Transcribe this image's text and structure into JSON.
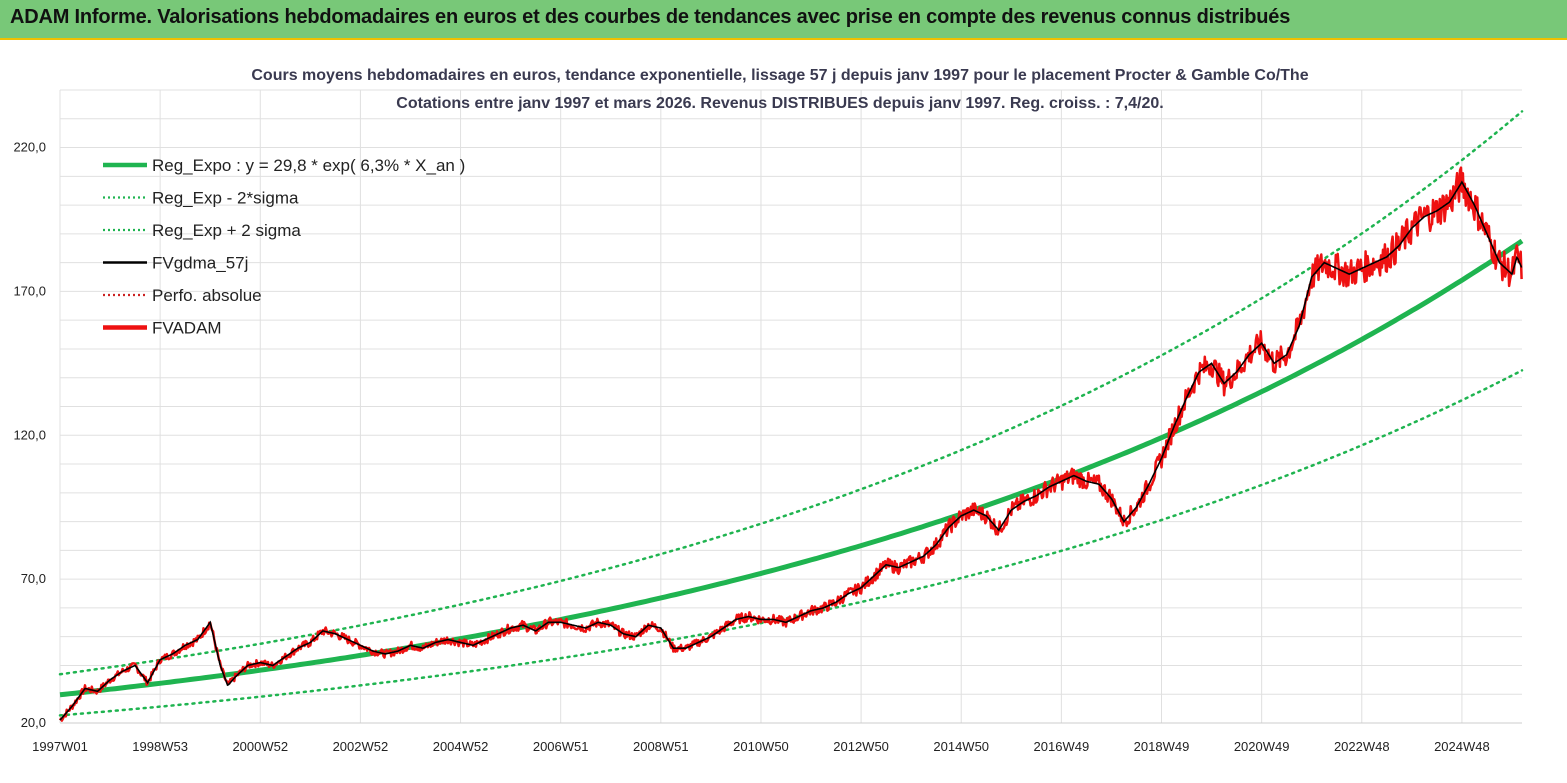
{
  "banner": {
    "title": "ADAM Informe. Valorisations hebdomadaires en euros et des courbes de tendances avec prise en compte des revenus connus distribués",
    "bg_color": "#78c878"
  },
  "chart_data": {
    "type": "line",
    "title": "Cours moyens hebdomadaires en euros, tendance exponentielle, lissage 57 j depuis janv 1997  pour le placement Procter & Gamble Co/The",
    "subtitle": "Cotations entre janv 1997 et mars 2026. Revenus DISTRIBUES depuis janv 1997. Reg. croiss. : 7,4/20.",
    "xlabel": "",
    "ylabel": "",
    "x_range": [
      1997.0,
      2026.2
    ],
    "ylim": [
      20,
      240
    ],
    "y_ticks": [
      20,
      70,
      120,
      170,
      220
    ],
    "y_tick_labels": [
      "20,0",
      "70,0",
      "120,0",
      "170,0",
      "220,0"
    ],
    "x_ticks": [
      {
        "label": "1997W01",
        "x": 1997.0
      },
      {
        "label": "1998W53",
        "x": 1999.0
      },
      {
        "label": "2000W52",
        "x": 2001.0
      },
      {
        "label": "2002W52",
        "x": 2003.0
      },
      {
        "label": "2004W52",
        "x": 2005.0
      },
      {
        "label": "2006W51",
        "x": 2007.0
      },
      {
        "label": "2008W51",
        "x": 2009.0
      },
      {
        "label": "2010W50",
        "x": 2011.0
      },
      {
        "label": "2012W50",
        "x": 2013.0
      },
      {
        "label": "2014W50",
        "x": 2015.0
      },
      {
        "label": "2016W49",
        "x": 2017.0
      },
      {
        "label": "2018W49",
        "x": 2019.0
      },
      {
        "label": "2020W49",
        "x": 2021.0
      },
      {
        "label": "2022W48",
        "x": 2023.0
      },
      {
        "label": "2024W48",
        "x": 2025.0
      }
    ],
    "grid": true,
    "legend_position": "top-left",
    "regression": {
      "a": 29.8,
      "growth_rate": 0.063,
      "x0": 1997.0,
      "sigma_factor": 0.24,
      "x_end": 2026.2
    },
    "series": [
      {
        "name": "Reg_Expo : y = 29,8 * exp( 6,3% *  X_an )",
        "color": "#1fb450",
        "style": "solid-thick",
        "kind": "regression"
      },
      {
        "name": "Reg_Exp - 2*sigma",
        "color": "#1fb450",
        "style": "dotted",
        "kind": "reg_minus"
      },
      {
        "name": "Reg_Exp + 2 sigma",
        "color": "#1fb450",
        "style": "dotted",
        "kind": "reg_plus"
      },
      {
        "name": "FVgdma_57j",
        "color": "#000000",
        "style": "solid",
        "kind": "smooth"
      },
      {
        "name": "Perfo. absolue",
        "color": "#cc2222",
        "style": "dotted",
        "kind": "none"
      },
      {
        "name": "FVADAM",
        "color": "#ee1111",
        "style": "solid-thick",
        "kind": "price"
      }
    ],
    "price_points": [
      [
        1997.0,
        21
      ],
      [
        1997.25,
        26
      ],
      [
        1997.5,
        32
      ],
      [
        1997.75,
        31
      ],
      [
        1998.0,
        35
      ],
      [
        1998.25,
        38
      ],
      [
        1998.5,
        40
      ],
      [
        1998.75,
        34
      ],
      [
        1999.0,
        42
      ],
      [
        1999.25,
        44
      ],
      [
        1999.5,
        47
      ],
      [
        1999.75,
        49
      ],
      [
        2000.0,
        55
      ],
      [
        2000.2,
        40
      ],
      [
        2000.35,
        33
      ],
      [
        2000.5,
        36
      ],
      [
        2000.75,
        40
      ],
      [
        2001.0,
        41
      ],
      [
        2001.25,
        40
      ],
      [
        2001.5,
        43
      ],
      [
        2001.75,
        46
      ],
      [
        2002.0,
        48
      ],
      [
        2002.25,
        52
      ],
      [
        2002.5,
        51
      ],
      [
        2002.75,
        49
      ],
      [
        2003.0,
        47
      ],
      [
        2003.25,
        45
      ],
      [
        2003.5,
        44
      ],
      [
        2003.75,
        45
      ],
      [
        2004.0,
        47
      ],
      [
        2004.25,
        46
      ],
      [
        2004.5,
        48
      ],
      [
        2004.75,
        49
      ],
      [
        2005.0,
        48
      ],
      [
        2005.25,
        47
      ],
      [
        2005.5,
        49
      ],
      [
        2005.75,
        51
      ],
      [
        2006.0,
        53
      ],
      [
        2006.25,
        54
      ],
      [
        2006.5,
        52
      ],
      [
        2006.75,
        55
      ],
      [
        2007.0,
        55
      ],
      [
        2007.25,
        54
      ],
      [
        2007.5,
        53
      ],
      [
        2007.75,
        55
      ],
      [
        2008.0,
        54
      ],
      [
        2008.25,
        51
      ],
      [
        2008.5,
        50
      ],
      [
        2008.75,
        54
      ],
      [
        2009.0,
        53
      ],
      [
        2009.25,
        46
      ],
      [
        2009.5,
        46
      ],
      [
        2009.75,
        48
      ],
      [
        2010.0,
        50
      ],
      [
        2010.25,
        53
      ],
      [
        2010.5,
        56
      ],
      [
        2010.75,
        57
      ],
      [
        2011.0,
        56
      ],
      [
        2011.25,
        56
      ],
      [
        2011.5,
        55
      ],
      [
        2011.75,
        57
      ],
      [
        2012.0,
        59
      ],
      [
        2012.25,
        60
      ],
      [
        2012.5,
        62
      ],
      [
        2012.75,
        65
      ],
      [
        2013.0,
        67
      ],
      [
        2013.25,
        71
      ],
      [
        2013.5,
        75
      ],
      [
        2013.75,
        74
      ],
      [
        2014.0,
        76
      ],
      [
        2014.25,
        78
      ],
      [
        2014.5,
        82
      ],
      [
        2014.75,
        88
      ],
      [
        2015.0,
        92
      ],
      [
        2015.25,
        94
      ],
      [
        2015.5,
        92
      ],
      [
        2015.75,
        87
      ],
      [
        2016.0,
        94
      ],
      [
        2016.25,
        97
      ],
      [
        2016.5,
        99
      ],
      [
        2016.75,
        102
      ],
      [
        2017.0,
        104
      ],
      [
        2017.25,
        106
      ],
      [
        2017.5,
        104
      ],
      [
        2017.75,
        103
      ],
      [
        2018.0,
        98
      ],
      [
        2018.25,
        90
      ],
      [
        2018.5,
        95
      ],
      [
        2018.75,
        103
      ],
      [
        2019.0,
        112
      ],
      [
        2019.25,
        123
      ],
      [
        2019.5,
        133
      ],
      [
        2019.75,
        142
      ],
      [
        2020.0,
        145
      ],
      [
        2020.25,
        138
      ],
      [
        2020.5,
        142
      ],
      [
        2020.75,
        148
      ],
      [
        2021.0,
        152
      ],
      [
        2021.25,
        145
      ],
      [
        2021.5,
        148
      ],
      [
        2021.75,
        158
      ],
      [
        2022.0,
        175
      ],
      [
        2022.25,
        180
      ],
      [
        2022.5,
        178
      ],
      [
        2022.75,
        176
      ],
      [
        2023.0,
        178
      ],
      [
        2023.25,
        180
      ],
      [
        2023.5,
        182
      ],
      [
        2023.75,
        186
      ],
      [
        2024.0,
        192
      ],
      [
        2024.25,
        196
      ],
      [
        2024.5,
        198
      ],
      [
        2024.75,
        201
      ],
      [
        2025.0,
        208
      ],
      [
        2025.25,
        200
      ],
      [
        2025.5,
        190
      ],
      [
        2025.75,
        180
      ],
      [
        2026.0,
        176
      ],
      [
        2026.1,
        182
      ],
      [
        2026.2,
        178
      ]
    ]
  }
}
